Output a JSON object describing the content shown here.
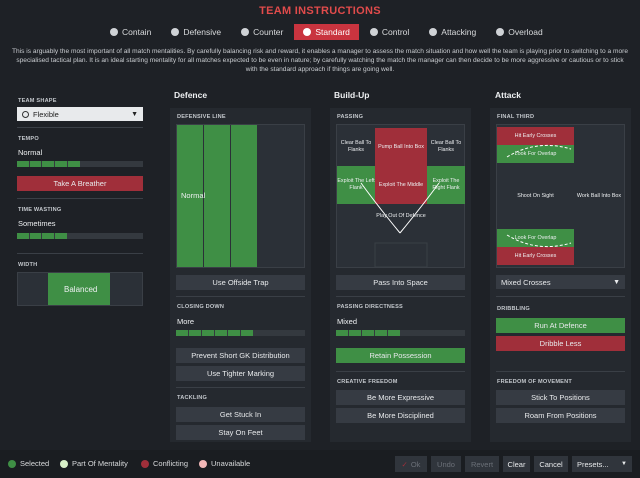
{
  "title": "TEAM INSTRUCTIONS",
  "tabs": [
    {
      "label": "Contain",
      "icon": "contain-icon"
    },
    {
      "label": "Defensive",
      "icon": "shield-icon"
    },
    {
      "label": "Counter",
      "icon": "counter-icon"
    },
    {
      "label": "Standard",
      "icon": "standard-icon",
      "active": true
    },
    {
      "label": "Control",
      "icon": "control-icon"
    },
    {
      "label": "Attacking",
      "icon": "attacking-icon"
    },
    {
      "label": "Overload",
      "icon": "overload-icon"
    }
  ],
  "description": "This is arguably the most important of all match mentalities. By carefully balancing risk and reward, it enables a manager to assess the match situation and how well the team is playing prior to switching to a more specialised tactical plan. It is an ideal starting mentality for all matches expected to be even in nature; by carefully watching the match the manager can then decide to be more aggressive or cautious or to stick with the standard approach if things are going well.",
  "left": {
    "team_shape_label": "TEAM SHAPE",
    "team_shape_value": "Flexible",
    "tempo_label": "TEMPO",
    "tempo_value": "Normal",
    "tempo_level": 0.5,
    "tempo_button": "Take A Breather",
    "time_wasting_label": "TIME WASTING",
    "time_wasting_value": "Sometimes",
    "time_wasting_level": 0.4,
    "width_label": "WIDTH",
    "width_value": "Balanced"
  },
  "defence": {
    "header": "Defence",
    "line_label": "DEFENSIVE LINE",
    "line_value": "Normal",
    "offside_button": "Use Offside Trap",
    "closing_label": "CLOSING DOWN",
    "closing_value": "More",
    "closing_level": 0.6,
    "closing_buttons": [
      "Prevent Short GK Distribution",
      "Use Tighter Marking"
    ],
    "tackling_label": "TACKLING",
    "tackling_buttons": [
      "Get Stuck In",
      "Stay On Feet"
    ]
  },
  "buildup": {
    "header": "Build-Up",
    "passing_label": "PASSING",
    "zones": {
      "left_top": "Clear Ball To Flanks",
      "center_top": "Pump Ball Into Box",
      "right_top": "Clear Ball To Flanks",
      "left_mid": "Exploit The Left Flank",
      "center_mid": "Exploit The Middle",
      "right_mid": "Exploit The Right Flank",
      "bottom": "Play Out Of Defence"
    },
    "pass_button": "Pass Into Space",
    "directness_label": "PASSING DIRECTNESS",
    "directness_value": "Mixed",
    "directness_level": 0.5,
    "retain_button": "Retain Possession",
    "creative_label": "CREATIVE FREEDOM",
    "creative_buttons": [
      "Be More Expressive",
      "Be More Disciplined"
    ]
  },
  "attack": {
    "header": "Attack",
    "final_label": "FINAL THIRD",
    "zones": {
      "top_red": "Hit Early Crosses",
      "top_green": "Look For Overlap",
      "center_left": "Shoot On Sight",
      "center_right": "Work Ball Into Box",
      "bottom_green": "Look For Overlap",
      "bottom_red": "Hit Early Crosses"
    },
    "crosses_value": "Mixed Crosses",
    "dribbling_label": "DRIBBLING",
    "dribbling_buttons": [
      "Run At Defence",
      "Dribble Less"
    ],
    "freedom_label": "FREEDOM OF MOVEMENT",
    "freedom_buttons": [
      "Stick To Positions",
      "Roam From Positions"
    ]
  },
  "legend": [
    {
      "label": "Selected",
      "color": "#3f8f45"
    },
    {
      "label": "Part Of Mentality",
      "color": "#d8f0c8"
    },
    {
      "label": "Conflicting",
      "color": "#a02f3a"
    },
    {
      "label": "Unavailable",
      "color": "#f2b8b8"
    }
  ],
  "footer_buttons": {
    "ok": "Ok",
    "undo": "Undo",
    "revert": "Revert",
    "clear": "Clear",
    "cancel": "Cancel",
    "presets": "Presets..."
  }
}
